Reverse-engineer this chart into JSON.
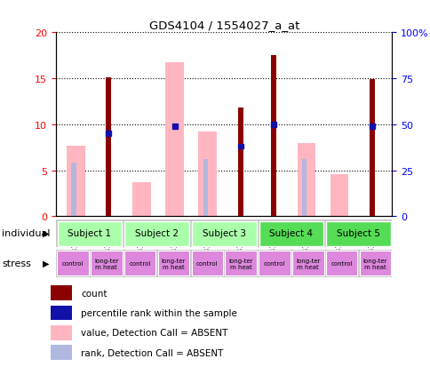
{
  "title": "GDS4104 / 1554027_a_at",
  "samples": [
    "GSM313315",
    "GSM313319",
    "GSM313316",
    "GSM313320",
    "GSM313324",
    "GSM313321",
    "GSM313317",
    "GSM313322",
    "GSM313318",
    "GSM313323"
  ],
  "count": [
    0,
    15.1,
    0,
    0,
    0,
    11.8,
    17.5,
    0,
    0,
    14.9
  ],
  "percentile": [
    0,
    9.0,
    0,
    9.8,
    0,
    7.6,
    10.0,
    0,
    0,
    9.8
  ],
  "value_absent": [
    7.7,
    0,
    3.7,
    16.7,
    9.2,
    0,
    0,
    7.9,
    4.6,
    0
  ],
  "rank_absent": [
    5.8,
    0,
    0,
    0,
    6.2,
    0,
    0,
    6.2,
    0,
    0
  ],
  "subjects": [
    {
      "label": "Subject 1",
      "start": 0,
      "end": 2,
      "color": "#aaffaa"
    },
    {
      "label": "Subject 2",
      "start": 2,
      "end": 4,
      "color": "#aaffaa"
    },
    {
      "label": "Subject 3",
      "start": 4,
      "end": 6,
      "color": "#aaffaa"
    },
    {
      "label": "Subject 4",
      "start": 6,
      "end": 8,
      "color": "#55dd55"
    },
    {
      "label": "Subject 5",
      "start": 8,
      "end": 10,
      "color": "#55dd55"
    }
  ],
  "stress_labels": [
    "control",
    "long-ter\nm heat",
    "control",
    "long-ter\nm heat",
    "control",
    "long-ter\nm heat",
    "control",
    "long-ter\nm heat",
    "control",
    "long-ter\nm heat"
  ],
  "stress_color": "#dd88dd",
  "ylim_left": [
    0,
    20
  ],
  "ylim_right": [
    0,
    100
  ],
  "yticks_left": [
    0,
    5,
    10,
    15,
    20
  ],
  "yticks_right": [
    0,
    25,
    50,
    75,
    100
  ],
  "ytick_labels_right": [
    "0",
    "25",
    "50",
    "75",
    "100%"
  ],
  "color_count": "#8B0000",
  "color_percentile": "#1111aa",
  "color_value_absent": "#FFB6C1",
  "color_rank_absent": "#b0b8e0",
  "bg_sample_row": "#c8c8c8",
  "legend_items": [
    {
      "label": "count",
      "color": "#8B0000"
    },
    {
      "label": "percentile rank within the sample",
      "color": "#1111aa"
    },
    {
      "label": "value, Detection Call = ABSENT",
      "color": "#FFB6C1"
    },
    {
      "label": "rank, Detection Call = ABSENT",
      "color": "#b0b8e0"
    }
  ]
}
